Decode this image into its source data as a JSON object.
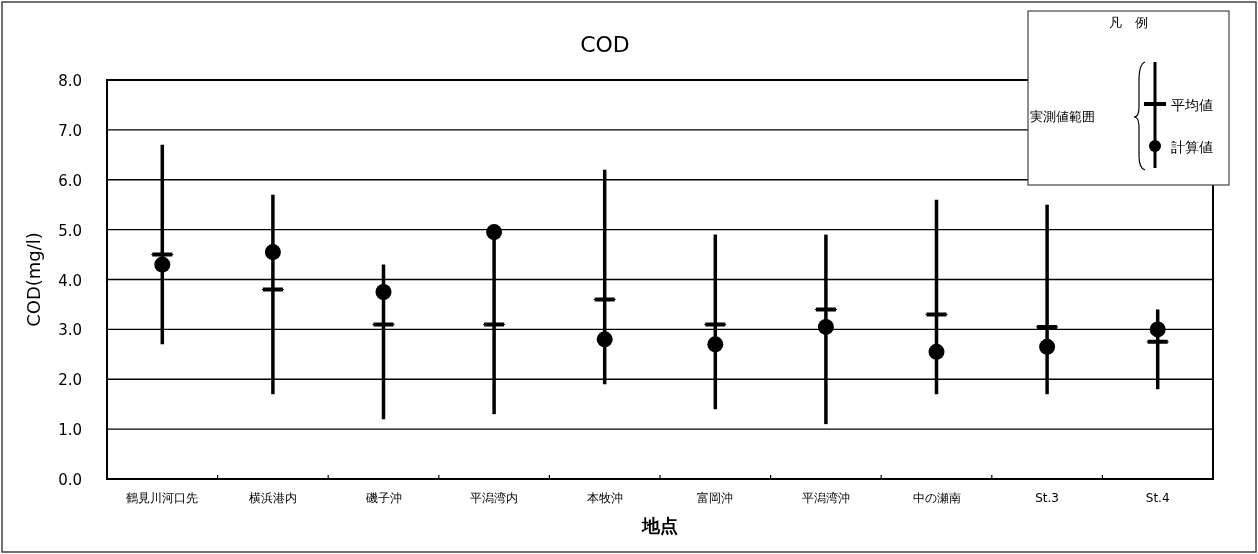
{
  "chart_data": {
    "type": "box",
    "title": "COD",
    "xlabel": "地点",
    "ylabel": "COD(mg/l)",
    "legend_title": "凡　例",
    "categories": [
      "鶴見川河口先",
      "横浜港内",
      "磯子沖",
      "平潟湾内",
      "本牧沖",
      "富岡沖",
      "平潟湾沖",
      "中の瀬南",
      "St.3",
      "St.4"
    ],
    "series": [
      {
        "name": "平均値",
        "color": "#000000",
        "boxes": [
          {
            "low": 2.7,
            "q1": 4.5,
            "median": 4.5,
            "q3": 4.5,
            "high": 6.7
          },
          {
            "low": 1.7,
            "q1": 3.8,
            "median": 3.8,
            "q3": 3.8,
            "high": 5.7
          },
          {
            "low": 1.2,
            "q1": 3.1,
            "median": 3.1,
            "q3": 3.1,
            "high": 4.3
          },
          {
            "low": 1.3,
            "q1": 3.1,
            "median": 3.1,
            "q3": 3.1,
            "high": 4.95
          },
          {
            "low": 1.9,
            "q1": 3.6,
            "median": 3.6,
            "q3": 3.6,
            "high": 6.2
          },
          {
            "low": 1.4,
            "q1": 3.1,
            "median": 3.1,
            "q3": 3.1,
            "high": 4.9
          },
          {
            "low": 1.1,
            "q1": 3.4,
            "median": 3.4,
            "q3": 3.4,
            "high": 4.9
          },
          {
            "low": 1.7,
            "q1": 3.3,
            "median": 3.3,
            "q3": 3.3,
            "high": 5.6
          },
          {
            "low": 1.7,
            "q1": 3.05,
            "median": 3.05,
            "q3": 3.05,
            "high": 5.5
          },
          {
            "low": 1.8,
            "q1": 2.75,
            "median": 2.75,
            "q3": 2.75,
            "high": 3.4
          }
        ]
      },
      {
        "name": "計算値",
        "type": "scatter",
        "color": "#000000",
        "marker": "circle",
        "x": [
          "鶴見川河口先",
          "横浜港内",
          "磯子沖",
          "平潟湾内",
          "本牧沖",
          "富岡沖",
          "平潟湾沖",
          "中の瀬南",
          "St.3",
          "St.4"
        ],
        "values": [
          4.3,
          4.55,
          3.75,
          4.95,
          2.8,
          2.7,
          3.05,
          2.55,
          2.65,
          3.0
        ]
      }
    ],
    "annotations": [
      "実測値範囲"
    ],
    "ylim": [
      0,
      8
    ],
    "yticks": [
      {
        "value": 0,
        "label": "0.0"
      },
      {
        "value": 1,
        "label": "1.0"
      },
      {
        "value": 2,
        "label": "2.0"
      },
      {
        "value": 3,
        "label": "3.0"
      },
      {
        "value": 4,
        "label": "4.0"
      },
      {
        "value": 5,
        "label": "5.0"
      },
      {
        "value": 6,
        "label": "6.0"
      },
      {
        "value": 7,
        "label": "7.0"
      },
      {
        "value": 8,
        "label": "8.0"
      }
    ],
    "grid": "y",
    "legend": "top right"
  }
}
